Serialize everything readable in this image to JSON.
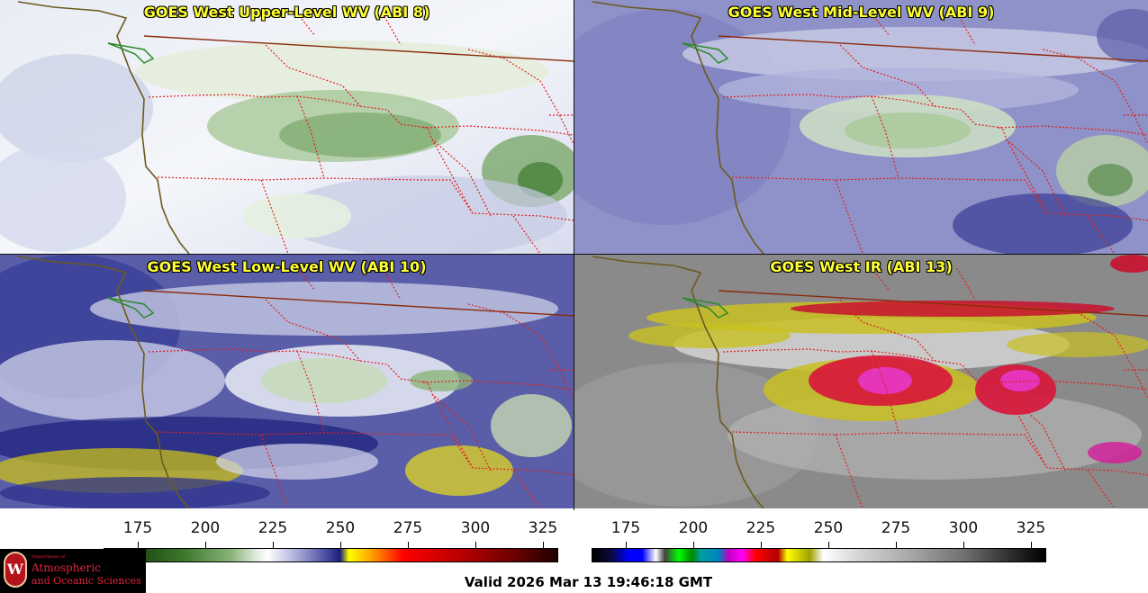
{
  "panels": [
    {
      "title": "GOES West Upper-Level WV (ABI 8)"
    },
    {
      "title": "GOES West Mid-Level WV (ABI 9)"
    },
    {
      "title": "GOES West Low-Level WV (ABI 10)"
    },
    {
      "title": "GOES West IR (ABI 13)"
    }
  ],
  "colorbars": {
    "wv": {
      "ticks": [
        "175",
        "200",
        "225",
        "250",
        "275",
        "300",
        "325"
      ]
    },
    "ir": {
      "ticks": [
        "175",
        "200",
        "225",
        "250",
        "275",
        "300",
        "325"
      ]
    }
  },
  "logo": {
    "dept": "Department of",
    "line1": "Atmospheric",
    "line2": "and Oceanic Sciences",
    "seal_letter": "W"
  },
  "valid_time": "Valid 2026 Mar 13 19:46:18 GMT",
  "colors": {
    "coast": "#6b5a1e",
    "border": "#e02020",
    "intl_border": "#8b2a0a"
  }
}
